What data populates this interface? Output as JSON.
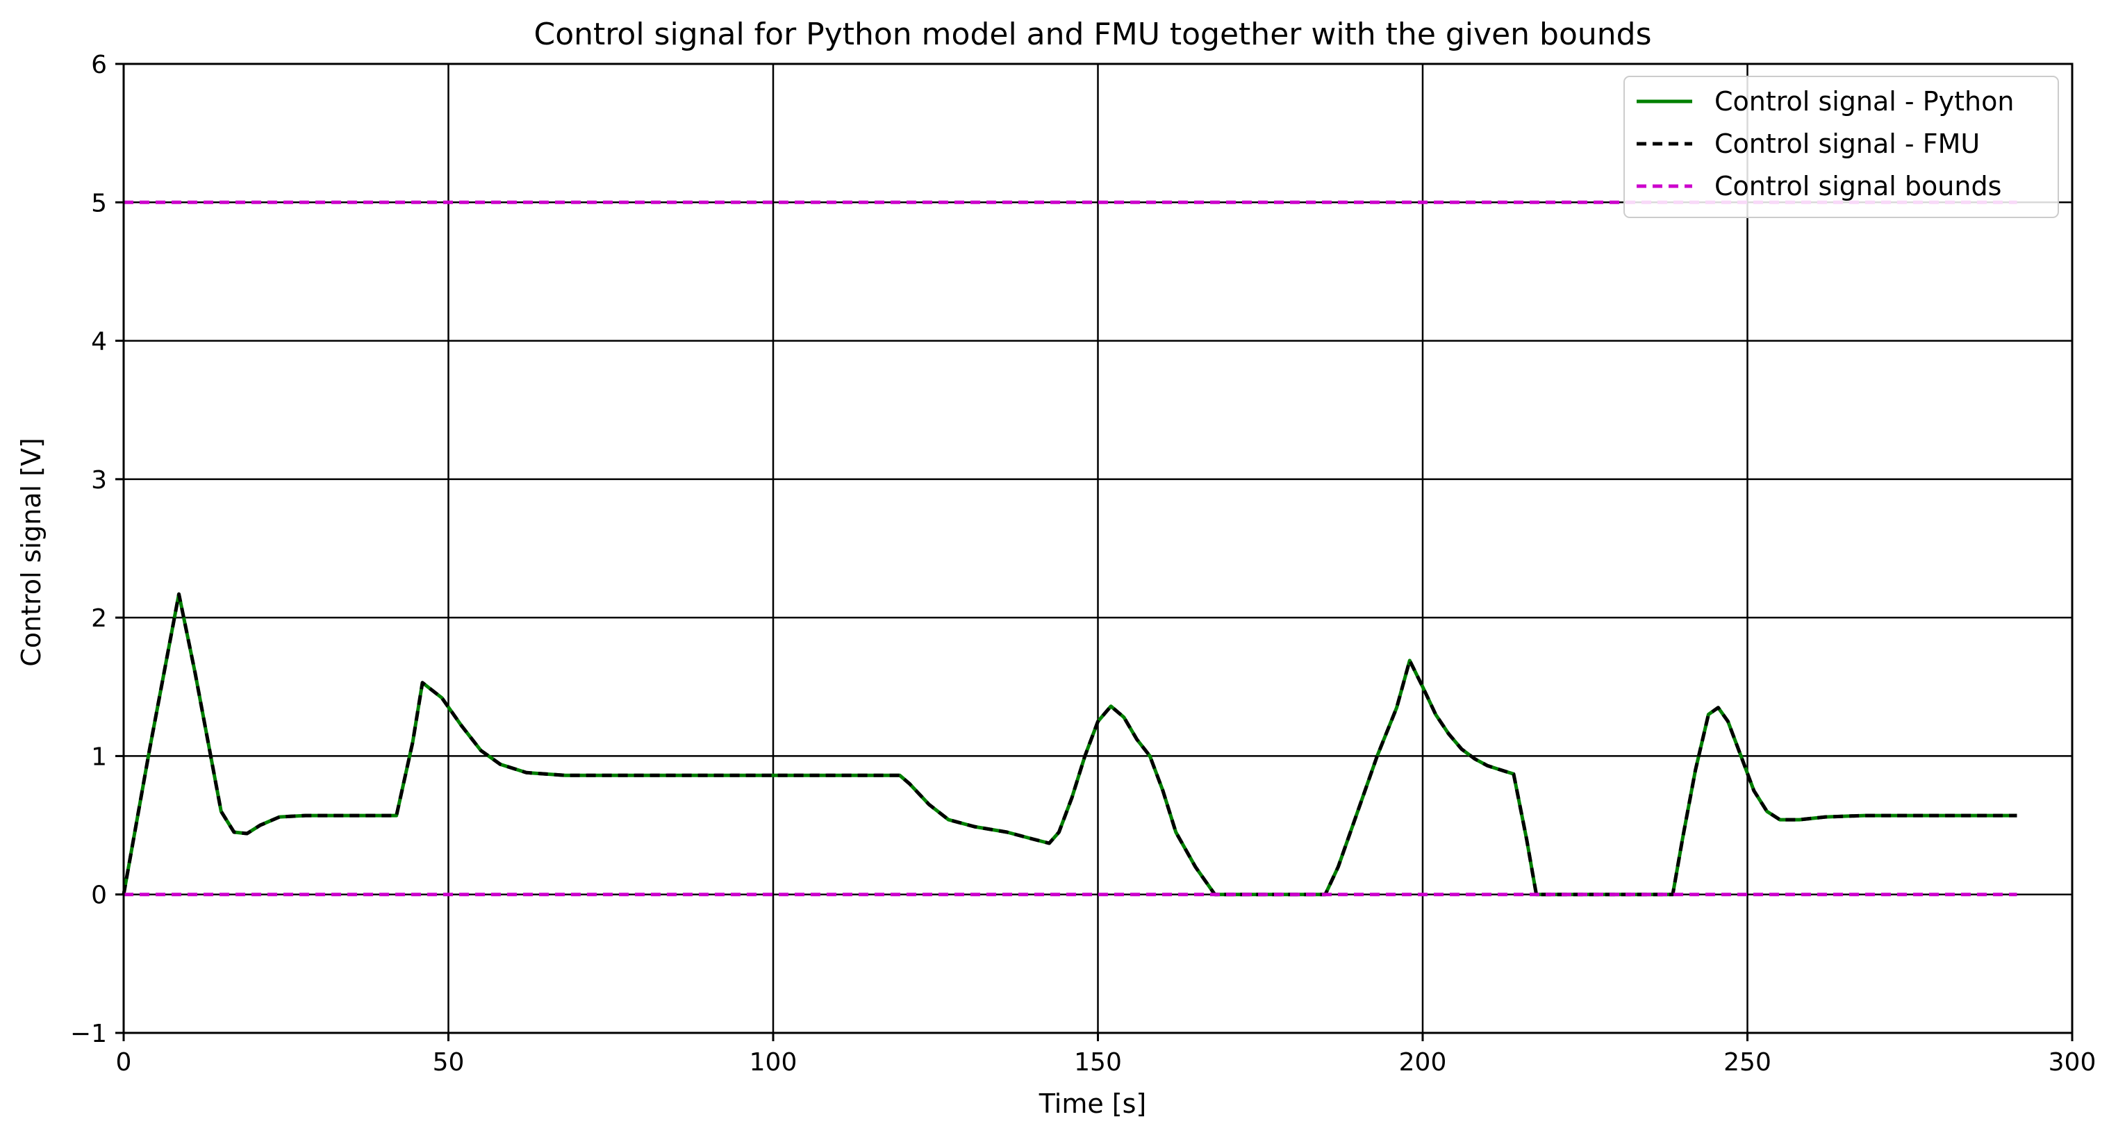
{
  "chart_data": {
    "type": "line",
    "title": "Control signal for Python model and FMU together with the given bounds",
    "xlabel": "Time [s]",
    "ylabel": "Control signal [V]",
    "xlim": [
      0,
      300
    ],
    "ylim": [
      -1,
      6
    ],
    "xticks": [
      0,
      50,
      100,
      150,
      200,
      250,
      300
    ],
    "xtick_labels": [
      "0",
      "50",
      "100",
      "150",
      "200",
      "250",
      "300"
    ],
    "yticks": [
      -1,
      0,
      1,
      2,
      3,
      4,
      5,
      6
    ],
    "ytick_labels": [
      "−1",
      "0",
      "1",
      "2",
      "3",
      "4",
      "5",
      "6"
    ],
    "grid": true,
    "legend_position": "top-right",
    "series": [
      {
        "name": "Control signal - Python",
        "color": "#008000",
        "style": "solid",
        "x": [
          0,
          4,
          8.5,
          11,
          13,
          15,
          17,
          19,
          21,
          24,
          28,
          35,
          42,
          44.5,
          46,
          49,
          52,
          55,
          58,
          62,
          68,
          80,
          100,
          119.5,
          121,
          124,
          127,
          131,
          136,
          140,
          142.5,
          144,
          146,
          148,
          150,
          152,
          154,
          156,
          158,
          160,
          162,
          165,
          168,
          175,
          185,
          187,
          190,
          193,
          196,
          198,
          200,
          202,
          204,
          206,
          208,
          210,
          212,
          214,
          216,
          217.5,
          225,
          238.5,
          240,
          242,
          244,
          245.5,
          247,
          249,
          251,
          253,
          255,
          258,
          262,
          268,
          280,
          291.5
        ],
        "y": [
          0.0,
          1.05,
          2.17,
          1.6,
          1.1,
          0.6,
          0.45,
          0.44,
          0.5,
          0.56,
          0.57,
          0.57,
          0.57,
          1.1,
          1.53,
          1.42,
          1.22,
          1.04,
          0.94,
          0.88,
          0.86,
          0.86,
          0.86,
          0.86,
          0.8,
          0.65,
          0.54,
          0.49,
          0.45,
          0.4,
          0.37,
          0.45,
          0.7,
          1.0,
          1.25,
          1.36,
          1.28,
          1.12,
          1.0,
          0.75,
          0.45,
          0.2,
          0.0,
          0.0,
          0.0,
          0.2,
          0.6,
          1.0,
          1.35,
          1.69,
          1.5,
          1.3,
          1.16,
          1.05,
          0.98,
          0.93,
          0.9,
          0.87,
          0.4,
          0.0,
          0.0,
          0.0,
          0.4,
          0.9,
          1.3,
          1.35,
          1.25,
          1.0,
          0.75,
          0.6,
          0.54,
          0.54,
          0.56,
          0.57,
          0.57,
          0.57
        ]
      },
      {
        "name": "Control signal - FMU",
        "color": "#000000",
        "style": "dashed",
        "x": [
          0,
          4,
          8.5,
          11,
          13,
          15,
          17,
          19,
          21,
          24,
          28,
          35,
          42,
          44.5,
          46,
          49,
          52,
          55,
          58,
          62,
          68,
          80,
          100,
          119.5,
          121,
          124,
          127,
          131,
          136,
          140,
          142.5,
          144,
          146,
          148,
          150,
          152,
          154,
          156,
          158,
          160,
          162,
          165,
          168,
          175,
          185,
          187,
          190,
          193,
          196,
          198,
          200,
          202,
          204,
          206,
          208,
          210,
          212,
          214,
          216,
          217.5,
          225,
          238.5,
          240,
          242,
          244,
          245.5,
          247,
          249,
          251,
          253,
          255,
          258,
          262,
          268,
          280,
          291.5
        ],
        "y": [
          0.0,
          1.05,
          2.17,
          1.6,
          1.1,
          0.6,
          0.45,
          0.44,
          0.5,
          0.56,
          0.57,
          0.57,
          0.57,
          1.1,
          1.53,
          1.42,
          1.22,
          1.04,
          0.94,
          0.88,
          0.86,
          0.86,
          0.86,
          0.86,
          0.8,
          0.65,
          0.54,
          0.49,
          0.45,
          0.4,
          0.37,
          0.45,
          0.7,
          1.0,
          1.25,
          1.36,
          1.28,
          1.12,
          1.0,
          0.75,
          0.45,
          0.2,
          0.0,
          0.0,
          0.0,
          0.2,
          0.6,
          1.0,
          1.35,
          1.69,
          1.5,
          1.3,
          1.16,
          1.05,
          0.98,
          0.93,
          0.9,
          0.87,
          0.4,
          0.0,
          0.0,
          0.0,
          0.4,
          0.9,
          1.3,
          1.35,
          1.25,
          1.0,
          0.75,
          0.6,
          0.54,
          0.54,
          0.56,
          0.57,
          0.57,
          0.57
        ]
      },
      {
        "name": "Control signal bounds",
        "color": "#cc00cc",
        "style": "dashed",
        "x": [
          0,
          291.5
        ],
        "y": [
          5,
          5
        ]
      },
      {
        "name": "Control signal bounds (lower)",
        "legend": false,
        "color": "#cc00cc",
        "style": "dashed",
        "x": [
          0,
          291.5
        ],
        "y": [
          0,
          0
        ]
      }
    ]
  }
}
